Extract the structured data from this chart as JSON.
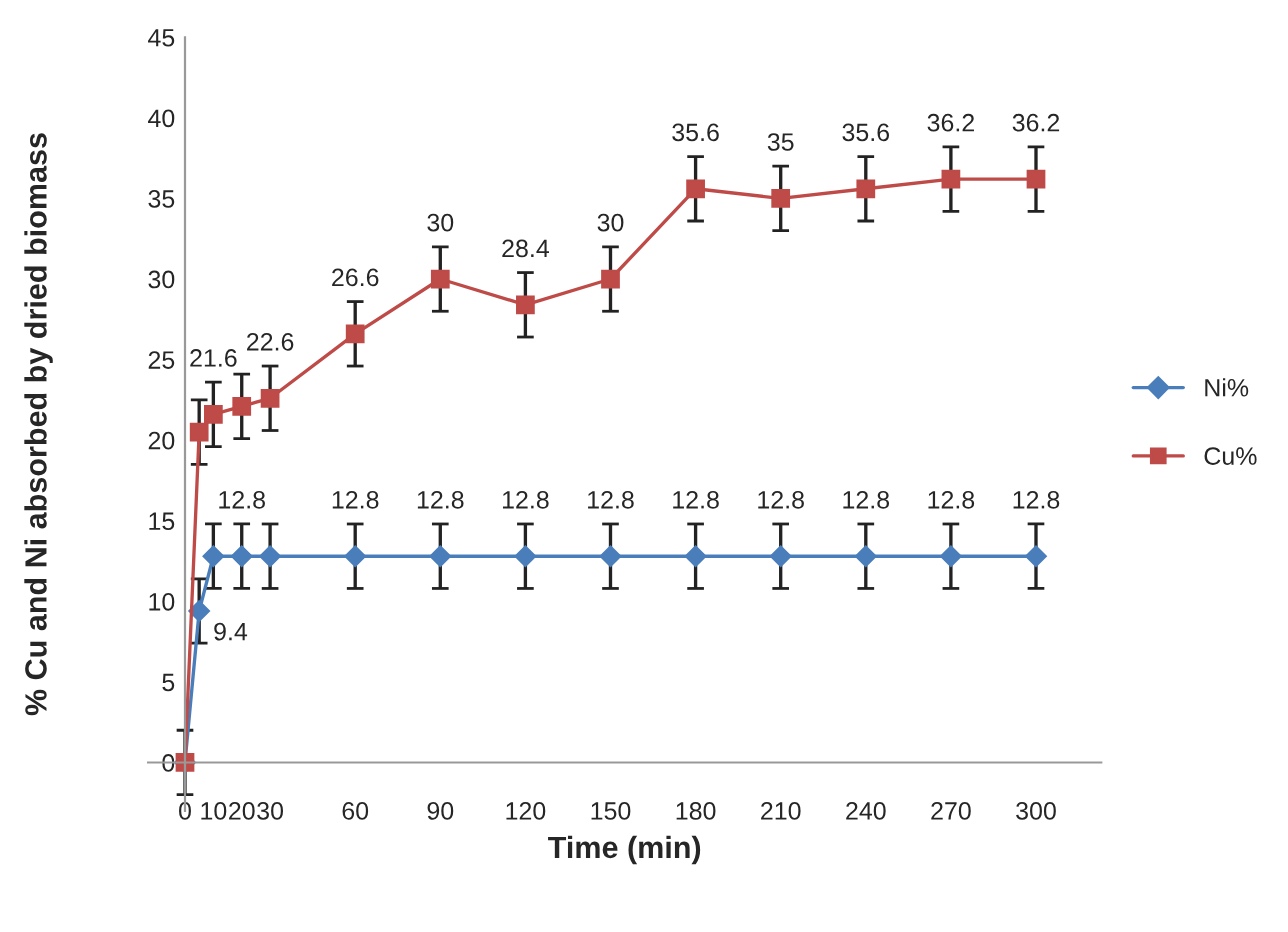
{
  "chart_data": {
    "type": "line",
    "xlabel": "Time (min)",
    "ylabel": "% Cu and Ni absorbed by dried biomass",
    "x": [
      0,
      5,
      10,
      20,
      30,
      60,
      90,
      120,
      150,
      180,
      210,
      240,
      270,
      300
    ],
    "xlim": [
      -13,
      323
    ],
    "xticks": [
      0,
      10,
      20,
      30,
      60,
      90,
      120,
      150,
      180,
      210,
      240,
      270,
      300
    ],
    "ylim": [
      -3,
      45
    ],
    "yticks": [
      0,
      5,
      10,
      15,
      20,
      25,
      30,
      35,
      40,
      45
    ],
    "grid": false,
    "legend": "right",
    "series": [
      {
        "name": "Ni%",
        "color": "#4a7ebb",
        "marker": "diamond",
        "values": [
          0,
          9.4,
          12.8,
          12.8,
          12.8,
          12.8,
          12.8,
          12.8,
          12.8,
          12.8,
          12.8,
          12.8,
          12.8,
          12.8
        ],
        "errors": [
          2,
          2,
          2,
          2,
          2,
          2,
          2,
          2,
          2,
          2,
          2,
          2,
          2,
          2
        ],
        "value_labels": [
          null,
          "9.4",
          null,
          "12.8",
          null,
          "12.8",
          "12.8",
          "12.8",
          "12.8",
          "12.8",
          "12.8",
          "12.8",
          "12.8",
          "12.8"
        ]
      },
      {
        "name": "Cu%",
        "color": "#be4b48",
        "marker": "square",
        "values": [
          0,
          20.5,
          21.6,
          22.1,
          22.6,
          26.6,
          30,
          28.4,
          30,
          35.6,
          35,
          35.6,
          36.2,
          36.2
        ],
        "errors": [
          null,
          2,
          2,
          2,
          2,
          2,
          2,
          2,
          2,
          2,
          2,
          2,
          2,
          2
        ],
        "value_labels": [
          null,
          null,
          "21.6",
          null,
          "22.6",
          "26.6",
          "30",
          "28.4",
          "30",
          "35.6",
          "35",
          "35.6",
          "36.2",
          "36.2"
        ]
      }
    ]
  }
}
